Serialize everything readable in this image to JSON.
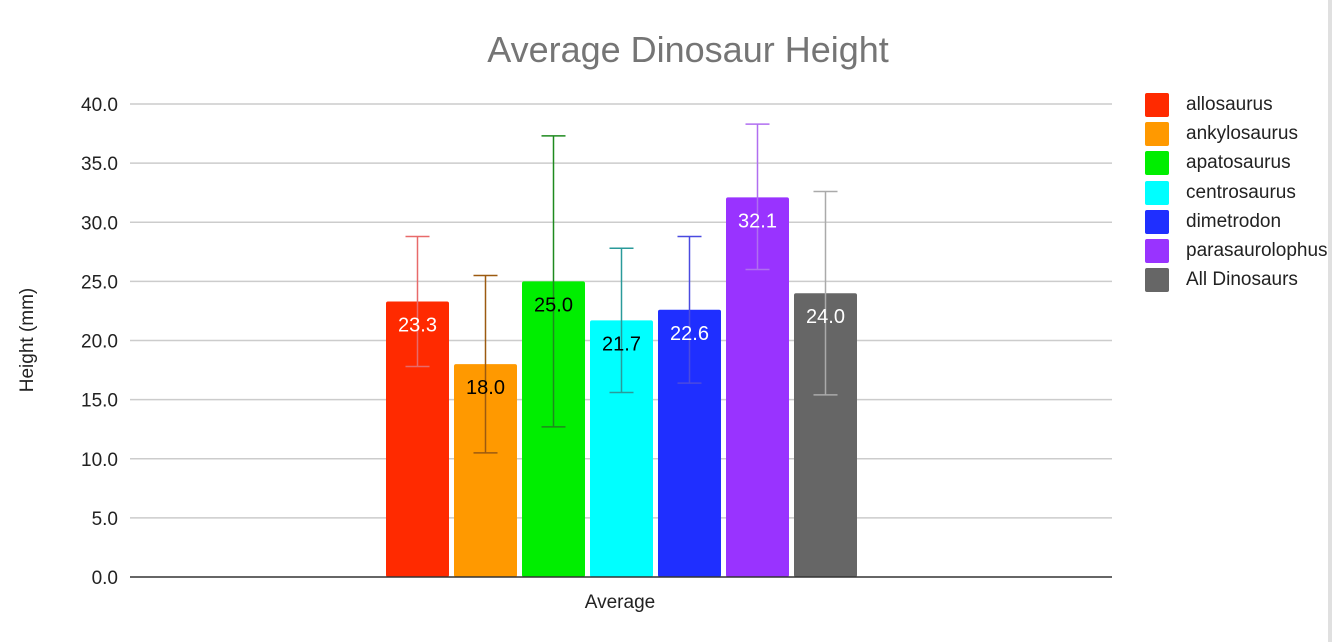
{
  "chart_data": {
    "type": "bar",
    "title": "Average Dinosaur Height",
    "xlabel": "Average",
    "ylabel": "Height (mm)",
    "ylim": [
      0,
      40
    ],
    "yticks": [
      "0.0",
      "5.0",
      "10.0",
      "15.0",
      "20.0",
      "25.0",
      "30.0",
      "35.0",
      "40.0"
    ],
    "categories": [
      "Average"
    ],
    "grid": true,
    "legend_position": "right",
    "series": [
      {
        "name": "allosaurus",
        "value": 23.3,
        "label": "23.3",
        "error": [
          17.8,
          28.8
        ],
        "color": "#ff2a00",
        "error_color": "#e86a6a",
        "label_color": "#ffffff"
      },
      {
        "name": "ankylosaurus",
        "value": 18.0,
        "label": "18.0",
        "error": [
          10.5,
          25.5
        ],
        "color": "#ff9900",
        "error_color": "#9c5a10",
        "label_color": "#000000"
      },
      {
        "name": "apatosaurus",
        "value": 25.0,
        "label": "25.0",
        "error": [
          12.7,
          37.3
        ],
        "color": "#00ee00",
        "error_color": "#1e8a1e",
        "label_color": "#000000"
      },
      {
        "name": "centrosaurus",
        "value": 21.7,
        "label": "21.7",
        "error": [
          15.6,
          27.8
        ],
        "color": "#00ffff",
        "error_color": "#2a9a9a",
        "label_color": "#000000"
      },
      {
        "name": "dimetrodon",
        "value": 22.6,
        "label": "22.6",
        "error": [
          16.4,
          28.8
        ],
        "color": "#1f2fff",
        "error_color": "#4a4ae0",
        "label_color": "#ffffff"
      },
      {
        "name": "parasaurolophus",
        "value": 32.1,
        "label": "32.1",
        "error": [
          26.0,
          38.3
        ],
        "color": "#9933ff",
        "error_color": "#b06ef0",
        "label_color": "#ffffff"
      },
      {
        "name": "All Dinosaurs",
        "value": 24.0,
        "label": "24.0",
        "error": [
          15.4,
          32.6
        ],
        "color": "#666666",
        "error_color": "#aaaaaa",
        "label_color": "#ffffff"
      }
    ]
  }
}
